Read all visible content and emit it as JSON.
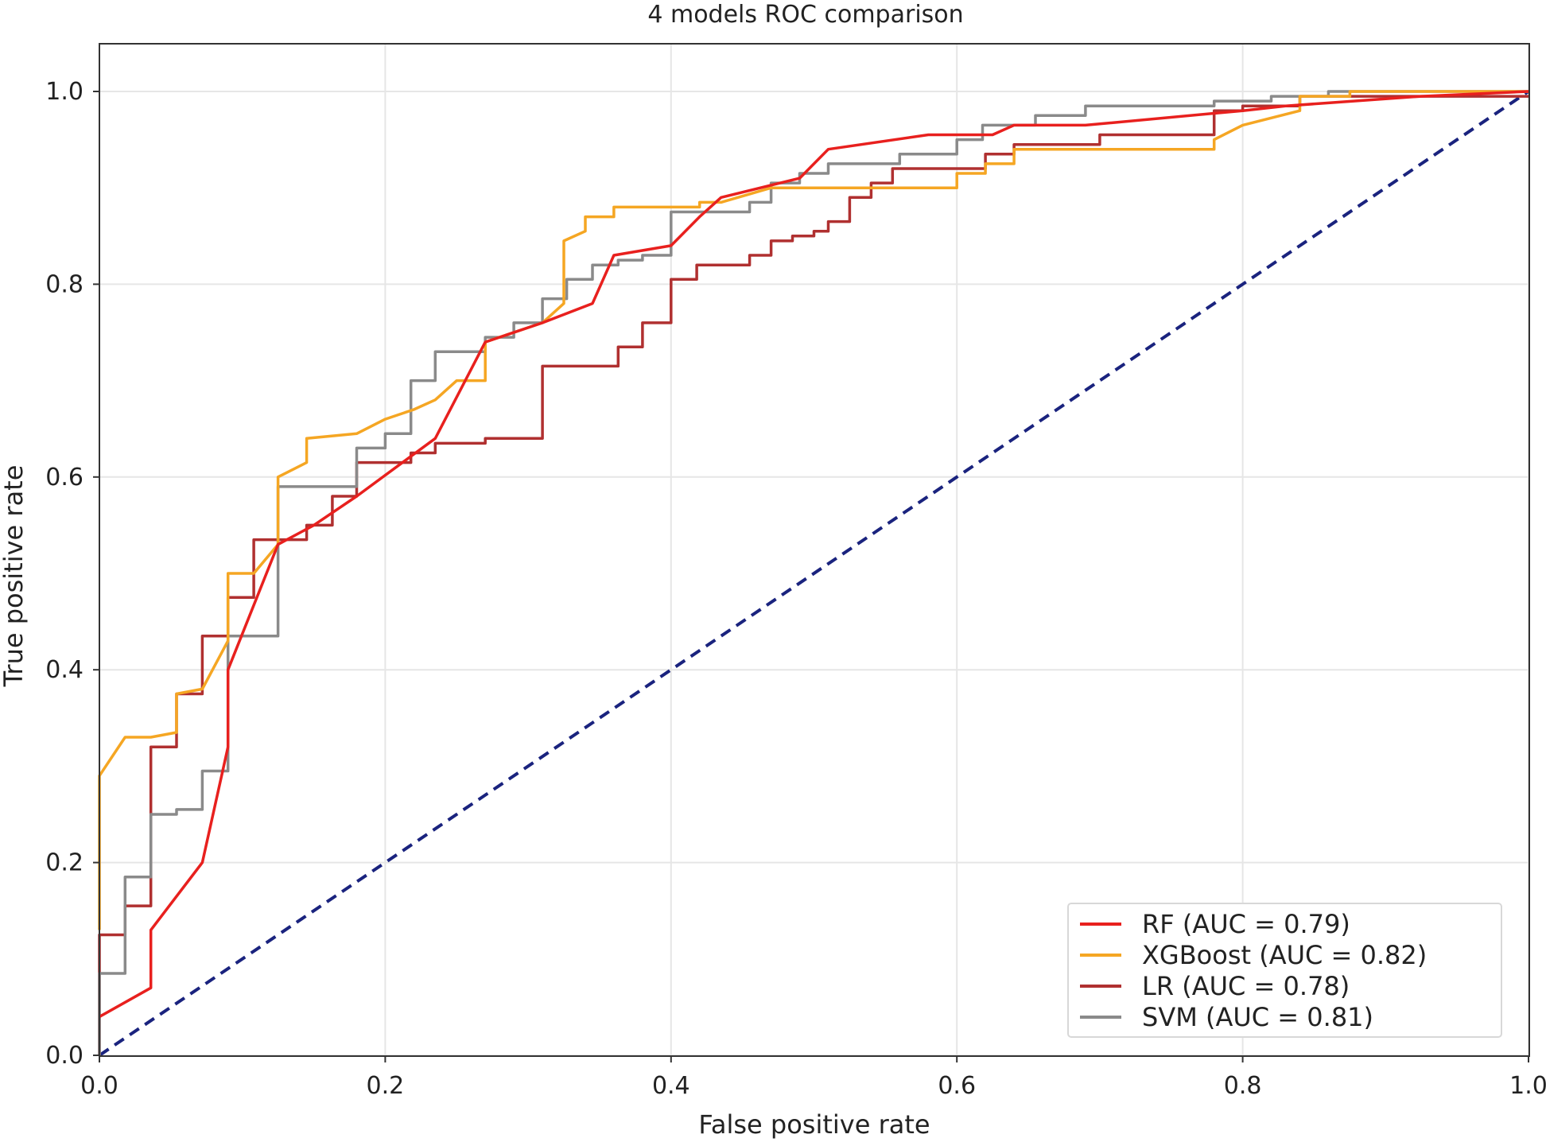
{
  "chart_data": {
    "type": "line",
    "title": "4 models ROC comparison",
    "xlabel": "False positive rate",
    "ylabel": "True positive rate",
    "xlim": [
      0.0,
      1.0
    ],
    "ylim": [
      0.0,
      1.0
    ],
    "xticks": [
      "0.0",
      "0.2",
      "0.4",
      "0.6",
      "0.8",
      "1.0"
    ],
    "yticks": [
      "0.0",
      "0.2",
      "0.4",
      "0.6",
      "0.8",
      "1.0"
    ],
    "grid": true,
    "legend_position": "lower-right",
    "series": [
      {
        "name": "RF (AUC = 0.79)",
        "color": "#e8201e",
        "x": [
          0.0,
          0.036,
          0.036,
          0.072,
          0.09,
          0.09,
          0.125,
          0.15,
          0.18,
          0.235,
          0.27,
          0.31,
          0.345,
          0.36,
          0.4,
          0.42,
          0.435,
          0.49,
          0.51,
          0.58,
          0.625,
          0.64,
          0.69,
          0.8,
          0.83,
          0.925,
          1.0
        ],
        "y": [
          0.04,
          0.07,
          0.13,
          0.2,
          0.32,
          0.4,
          0.53,
          0.55,
          0.58,
          0.64,
          0.74,
          0.76,
          0.78,
          0.83,
          0.84,
          0.87,
          0.89,
          0.91,
          0.94,
          0.955,
          0.955,
          0.965,
          0.965,
          0.98,
          0.985,
          0.995,
          1.0
        ]
      },
      {
        "name": "XGBoost (AUC = 0.82)",
        "color": "#f5a623",
        "x": [
          0.0,
          0.0,
          0.018,
          0.036,
          0.054,
          0.054,
          0.072,
          0.09,
          0.09,
          0.108,
          0.125,
          0.125,
          0.145,
          0.145,
          0.18,
          0.2,
          0.22,
          0.235,
          0.25,
          0.27,
          0.27,
          0.29,
          0.31,
          0.325,
          0.325,
          0.34,
          0.34,
          0.36,
          0.36,
          0.42,
          0.42,
          0.435,
          0.47,
          0.6,
          0.6,
          0.62,
          0.62,
          0.64,
          0.64,
          0.78,
          0.78,
          0.8,
          0.84,
          0.84,
          0.875,
          0.875,
          1.0
        ],
        "y": [
          0.13,
          0.29,
          0.33,
          0.33,
          0.335,
          0.375,
          0.38,
          0.43,
          0.5,
          0.5,
          0.53,
          0.6,
          0.615,
          0.64,
          0.645,
          0.66,
          0.67,
          0.68,
          0.7,
          0.7,
          0.74,
          0.75,
          0.76,
          0.78,
          0.845,
          0.855,
          0.87,
          0.87,
          0.88,
          0.88,
          0.885,
          0.885,
          0.9,
          0.9,
          0.915,
          0.915,
          0.925,
          0.925,
          0.94,
          0.94,
          0.95,
          0.965,
          0.98,
          0.995,
          0.995,
          1.0,
          1.0
        ]
      },
      {
        "name": "LR (AUC = 0.78)",
        "color": "#b03030",
        "x": [
          0.0,
          0.0,
          0.018,
          0.018,
          0.036,
          0.036,
          0.054,
          0.054,
          0.072,
          0.072,
          0.09,
          0.09,
          0.108,
          0.108,
          0.145,
          0.145,
          0.163,
          0.163,
          0.18,
          0.18,
          0.218,
          0.218,
          0.235,
          0.235,
          0.27,
          0.27,
          0.31,
          0.31,
          0.363,
          0.363,
          0.38,
          0.38,
          0.4,
          0.4,
          0.418,
          0.418,
          0.455,
          0.455,
          0.47,
          0.47,
          0.485,
          0.485,
          0.5,
          0.5,
          0.51,
          0.51,
          0.525,
          0.525,
          0.54,
          0.54,
          0.555,
          0.555,
          0.62,
          0.62,
          0.64,
          0.64,
          0.7,
          0.7,
          0.78,
          0.78,
          0.8,
          0.8,
          0.84,
          0.84,
          0.86,
          0.86,
          1.0
        ],
        "y": [
          0.0,
          0.125,
          0.125,
          0.155,
          0.155,
          0.32,
          0.32,
          0.375,
          0.375,
          0.435,
          0.435,
          0.475,
          0.475,
          0.535,
          0.535,
          0.55,
          0.55,
          0.58,
          0.58,
          0.615,
          0.615,
          0.625,
          0.625,
          0.635,
          0.635,
          0.64,
          0.64,
          0.715,
          0.715,
          0.735,
          0.735,
          0.76,
          0.76,
          0.805,
          0.805,
          0.82,
          0.82,
          0.83,
          0.83,
          0.845,
          0.845,
          0.85,
          0.85,
          0.855,
          0.855,
          0.865,
          0.865,
          0.89,
          0.89,
          0.905,
          0.905,
          0.92,
          0.92,
          0.935,
          0.935,
          0.945,
          0.945,
          0.955,
          0.955,
          0.98,
          0.98,
          0.985,
          0.985,
          0.995,
          0.995,
          0.995,
          0.995
        ]
      },
      {
        "name": "SVM (AUC = 0.81)",
        "color": "#8a8a8a",
        "x": [
          0.0,
          0.0,
          0.018,
          0.018,
          0.036,
          0.036,
          0.054,
          0.054,
          0.072,
          0.072,
          0.09,
          0.09,
          0.125,
          0.125,
          0.18,
          0.18,
          0.2,
          0.2,
          0.218,
          0.218,
          0.235,
          0.235,
          0.27,
          0.27,
          0.29,
          0.29,
          0.31,
          0.31,
          0.327,
          0.327,
          0.345,
          0.345,
          0.363,
          0.363,
          0.38,
          0.38,
          0.4,
          0.4,
          0.455,
          0.455,
          0.47,
          0.47,
          0.49,
          0.49,
          0.51,
          0.51,
          0.56,
          0.56,
          0.6,
          0.6,
          0.618,
          0.618,
          0.655,
          0.655,
          0.69,
          0.69,
          0.78,
          0.78,
          0.82,
          0.82,
          0.86,
          0.86,
          1.0
        ],
        "y": [
          0.0,
          0.085,
          0.085,
          0.185,
          0.185,
          0.25,
          0.25,
          0.255,
          0.255,
          0.295,
          0.295,
          0.435,
          0.435,
          0.59,
          0.59,
          0.63,
          0.63,
          0.645,
          0.645,
          0.7,
          0.7,
          0.73,
          0.73,
          0.745,
          0.745,
          0.76,
          0.76,
          0.785,
          0.785,
          0.805,
          0.805,
          0.82,
          0.82,
          0.825,
          0.825,
          0.83,
          0.83,
          0.875,
          0.875,
          0.885,
          0.885,
          0.905,
          0.905,
          0.915,
          0.915,
          0.925,
          0.925,
          0.935,
          0.935,
          0.95,
          0.95,
          0.965,
          0.965,
          0.975,
          0.975,
          0.985,
          0.985,
          0.99,
          0.99,
          0.995,
          0.995,
          1.0,
          1.0
        ]
      },
      {
        "name": "",
        "color": "#1a237e",
        "dashed": true,
        "x": [
          0.0,
          1.0
        ],
        "y": [
          0.0,
          1.0
        ]
      }
    ]
  }
}
